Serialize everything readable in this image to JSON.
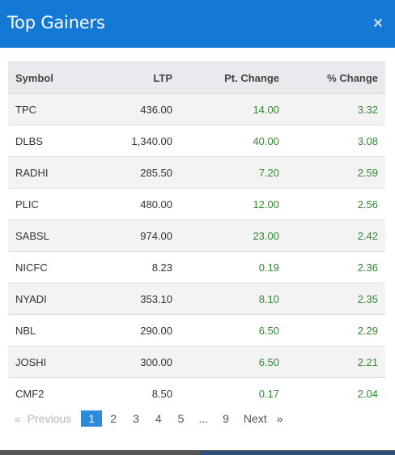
{
  "header": {
    "title": "Top Gainers",
    "close_label": "×"
  },
  "table": {
    "columns": [
      "Symbol",
      "LTP",
      "Pt. Change",
      "% Change"
    ],
    "rows": [
      [
        "TPC",
        "436.00",
        "14.00",
        "3.32"
      ],
      [
        "DLBS",
        "1,340.00",
        "40.00",
        "3.08"
      ],
      [
        "RADHI",
        "285.50",
        "7.20",
        "2.59"
      ],
      [
        "PLIC",
        "480.00",
        "12.00",
        "2.56"
      ],
      [
        "SABSL",
        "974.00",
        "23.00",
        "2.42"
      ],
      [
        "NICFC",
        "8.23",
        "0.19",
        "2.36"
      ],
      [
        "NYADI",
        "353.10",
        "8.10",
        "2.35"
      ],
      [
        "NBL",
        "290.00",
        "6.50",
        "2.29"
      ],
      [
        "JOSHI",
        "300.00",
        "6.50",
        "2.21"
      ],
      [
        "CMF2",
        "8.50",
        "0.17",
        "2.04"
      ]
    ]
  },
  "pagination": {
    "prev_arrow": "«",
    "prev_label": "Previous",
    "pages": [
      "1",
      "2",
      "3",
      "4",
      "5",
      "...",
      "9"
    ],
    "active_page": "1",
    "next_label": "Next",
    "next_arrow": "»"
  },
  "colors": {
    "header": "#1479d4",
    "positive": "#2e8b2e",
    "active_page": "#2c8ad8"
  }
}
